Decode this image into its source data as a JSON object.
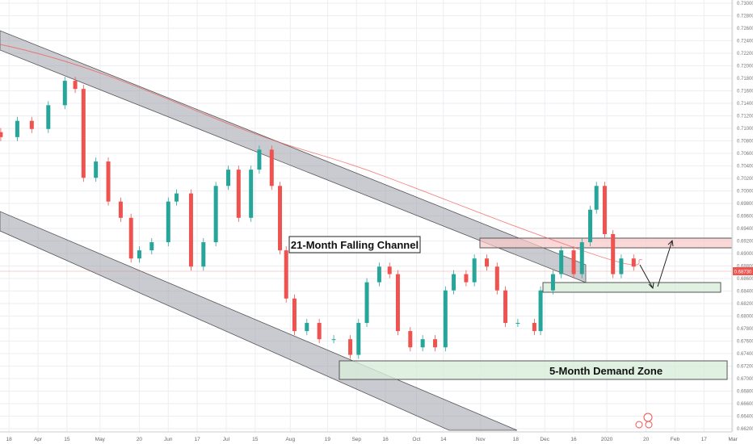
{
  "chart_data": {
    "type": "candlestick",
    "symbol_hint": "",
    "y_axis": {
      "range": [
        0.662,
        0.73
      ],
      "ticks": [
        "0.73000",
        "0.72800",
        "0.72600",
        "0.72400",
        "0.72200",
        "0.72000",
        "0.71800",
        "0.71600",
        "0.71400",
        "0.71200",
        "0.71000",
        "0.70800",
        "0.70600",
        "0.70400",
        "0.70200",
        "0.70000",
        "0.69800",
        "0.69600",
        "0.69400",
        "0.69200",
        "0.69000",
        "0.68800",
        "0.68600",
        "0.68400",
        "0.68200",
        "0.68000",
        "0.67800",
        "0.67600",
        "0.67400",
        "0.67200",
        "0.67000",
        "0.66800",
        "0.66600",
        "0.66400",
        "0.66200"
      ],
      "position": "right"
    },
    "x_axis": {
      "ticks": [
        {
          "label": "18",
          "date": "2019-03-18"
        },
        {
          "label": "Apr",
          "date": "2019-04-01"
        },
        {
          "label": "15",
          "date": "2019-04-15"
        },
        {
          "label": "May",
          "date": "2019-05-01"
        },
        {
          "label": "20",
          "date": "2019-05-20"
        },
        {
          "label": "Jun",
          "date": "2019-06-03"
        },
        {
          "label": "17",
          "date": "2019-06-17"
        },
        {
          "label": "Jul",
          "date": "2019-07-01"
        },
        {
          "label": "15",
          "date": "2019-07-15"
        },
        {
          "label": "Aug",
          "date": "2019-08-01"
        },
        {
          "label": "19",
          "date": "2019-08-19"
        },
        {
          "label": "Sep",
          "date": "2019-09-02"
        },
        {
          "label": "16",
          "date": "2019-09-16"
        },
        {
          "label": "Oct",
          "date": "2019-10-01"
        },
        {
          "label": "14",
          "date": "2019-10-14"
        },
        {
          "label": "Nov",
          "date": "2019-11-01"
        },
        {
          "label": "18",
          "date": "2019-11-18"
        },
        {
          "label": "Dec",
          "date": "2019-12-02"
        },
        {
          "label": "16",
          "date": "2019-12-16"
        },
        {
          "label": "2020",
          "date": "2020-01-01"
        },
        {
          "label": "20",
          "date": "2020-01-20"
        },
        {
          "label": "Feb",
          "date": "2020-02-03"
        },
        {
          "label": "17",
          "date": "2020-02-17"
        },
        {
          "label": "Mar",
          "date": "2020-03-02"
        }
      ]
    },
    "closes": [
      [
        "2019-03-14",
        0.7086
      ],
      [
        "2019-03-22",
        0.7112
      ],
      [
        "2019-03-29",
        0.7099
      ],
      [
        "2019-04-06",
        0.7137
      ],
      [
        "2019-04-14",
        0.7176
      ],
      [
        "2019-04-19",
        0.7163
      ],
      [
        "2019-04-23",
        0.7021
      ],
      [
        "2019-04-29",
        0.7047
      ],
      [
        "2019-05-05",
        0.6983
      ],
      [
        "2019-05-11",
        0.6957
      ],
      [
        "2019-05-16",
        0.6892
      ],
      [
        "2019-05-20",
        0.6905
      ],
      [
        "2019-05-26",
        0.6918
      ],
      [
        "2019-06-03",
        0.6983
      ],
      [
        "2019-06-07",
        0.6996
      ],
      [
        "2019-06-14",
        0.6879
      ],
      [
        "2019-06-20",
        0.6918
      ],
      [
        "2019-06-26",
        0.7008
      ],
      [
        "2019-07-02",
        0.7034
      ],
      [
        "2019-07-07",
        0.6957
      ],
      [
        "2019-07-13",
        0.7034
      ],
      [
        "2019-07-17",
        0.7066
      ],
      [
        "2019-07-23",
        0.7008
      ],
      [
        "2019-07-27",
        0.6905
      ],
      [
        "2019-07-30",
        0.6828
      ],
      [
        "2019-08-03",
        0.6776
      ],
      [
        "2019-08-09",
        0.6789
      ],
      [
        "2019-08-15",
        0.6763
      ],
      [
        "2019-08-22",
        0.6763
      ],
      [
        "2019-08-30",
        0.6738
      ],
      [
        "2019-09-03",
        0.6789
      ],
      [
        "2019-09-07",
        0.6854
      ],
      [
        "2019-09-13",
        0.6879
      ],
      [
        "2019-09-18",
        0.6867
      ],
      [
        "2019-09-22",
        0.6776
      ],
      [
        "2019-09-28",
        0.675
      ],
      [
        "2019-10-04",
        0.6763
      ],
      [
        "2019-10-10",
        0.675
      ],
      [
        "2019-10-15",
        0.6841
      ],
      [
        "2019-10-19",
        0.6867
      ],
      [
        "2019-10-25",
        0.6854
      ],
      [
        "2019-10-29",
        0.6892
      ],
      [
        "2019-11-04",
        0.6879
      ],
      [
        "2019-11-09",
        0.6841
      ],
      [
        "2019-11-13",
        0.6789
      ],
      [
        "2019-11-19",
        0.6789
      ],
      [
        "2019-11-27",
        0.6776
      ],
      [
        "2019-11-30",
        0.6841
      ],
      [
        "2019-12-06",
        0.6867
      ],
      [
        "2019-12-10",
        0.6905
      ],
      [
        "2019-12-16",
        0.6867
      ],
      [
        "2019-12-20",
        0.6918
      ],
      [
        "2019-12-24",
        0.697
      ],
      [
        "2019-12-27",
        0.7008
      ],
      [
        "2019-12-31",
        0.6931
      ],
      [
        "2020-01-04",
        0.6867
      ],
      [
        "2020-01-08",
        0.6892
      ],
      [
        "2020-01-14",
        0.6879
      ]
    ],
    "moving_average_color": "#ef5350",
    "last_price": "0.68730",
    "colors": {
      "up": "#26a69a",
      "down": "#ef5350",
      "channel": "#9598a1",
      "resistance_zone": "#f8c8c8",
      "demand_zone": "#d8ecd9"
    },
    "annotations": {
      "channel_label": "21-Month Falling Channel",
      "demand_label": "5-Month Demand Zone"
    },
    "grid": true
  }
}
